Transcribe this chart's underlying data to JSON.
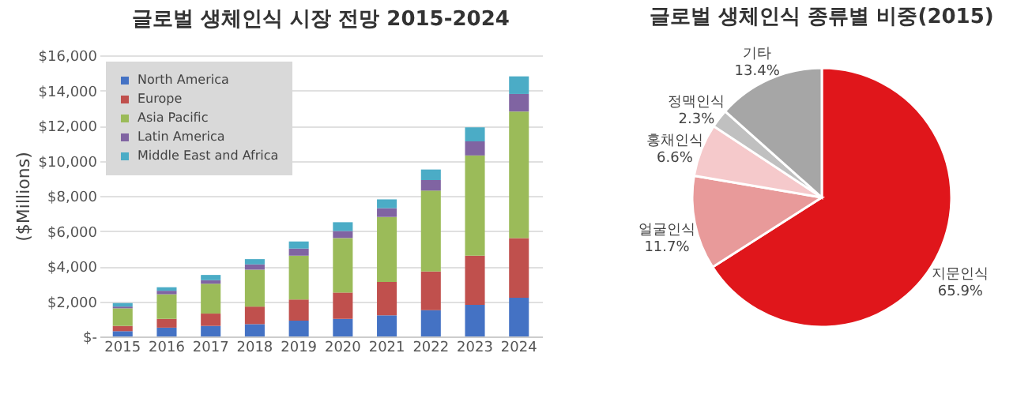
{
  "chart_data": [
    {
      "type": "bar",
      "title": "글로벌 생체인식 시장 전망 2015-2024",
      "ylabel": "($Millions)",
      "stacked": true,
      "grid": "y",
      "legend": "top left",
      "categories": [
        "2015",
        "2016",
        "2017",
        "2018",
        "2019",
        "2020",
        "2021",
        "2022",
        "2023",
        "2024"
      ],
      "ylim": [
        0,
        16000
      ],
      "yticks": [
        {
          "value": 0,
          "label": "$-"
        },
        {
          "value": 2000,
          "label": "$2,000"
        },
        {
          "value": 4000,
          "label": "$4,000"
        },
        {
          "value": 6000,
          "label": "$6,000"
        },
        {
          "value": 8000,
          "label": "$8,000"
        },
        {
          "value": 10000,
          "label": "$10,000"
        },
        {
          "value": 12000,
          "label": "$12,000"
        },
        {
          "value": 14000,
          "label": "$14,000"
        },
        {
          "value": 16000,
          "label": "$16,000"
        }
      ],
      "series": [
        {
          "name": "North America",
          "color": "#4472c4",
          "values": [
            300,
            500,
            600,
            700,
            900,
            1000,
            1200,
            1500,
            1800,
            2200
          ]
        },
        {
          "name": "Europe",
          "color": "#c0504d",
          "values": [
            300,
            500,
            700,
            1000,
            1200,
            1500,
            1900,
            2200,
            2800,
            3400
          ]
        },
        {
          "name": "Asia Pacific",
          "color": "#9bbb59",
          "values": [
            1000,
            1400,
            1700,
            2100,
            2500,
            3100,
            3700,
            4600,
            5700,
            7200
          ]
        },
        {
          "name": "Latin America",
          "color": "#8064a2",
          "values": [
            100,
            200,
            200,
            300,
            400,
            400,
            500,
            600,
            800,
            1000
          ]
        },
        {
          "name": "Middle East and Africa",
          "color": "#4bacc6",
          "values": [
            200,
            200,
            300,
            300,
            400,
            500,
            500,
            600,
            800,
            1000
          ]
        }
      ]
    },
    {
      "type": "pie",
      "title": "글로벌 생체인식 종류별 비중(2015)",
      "categories": [
        "지문인식",
        "얼굴인식",
        "홍채인식",
        "정맥인식",
        "기타"
      ],
      "values": [
        65.9,
        11.7,
        6.6,
        2.3,
        13.4
      ],
      "value_labels": [
        "65.9%",
        "11.7%",
        "6.6%",
        "2.3%",
        "13.4%"
      ],
      "colors": [
        "#e0161b",
        "#e89a9a",
        "#f5c9cb",
        "#c0c0c0",
        "#a6a6a6"
      ]
    }
  ]
}
